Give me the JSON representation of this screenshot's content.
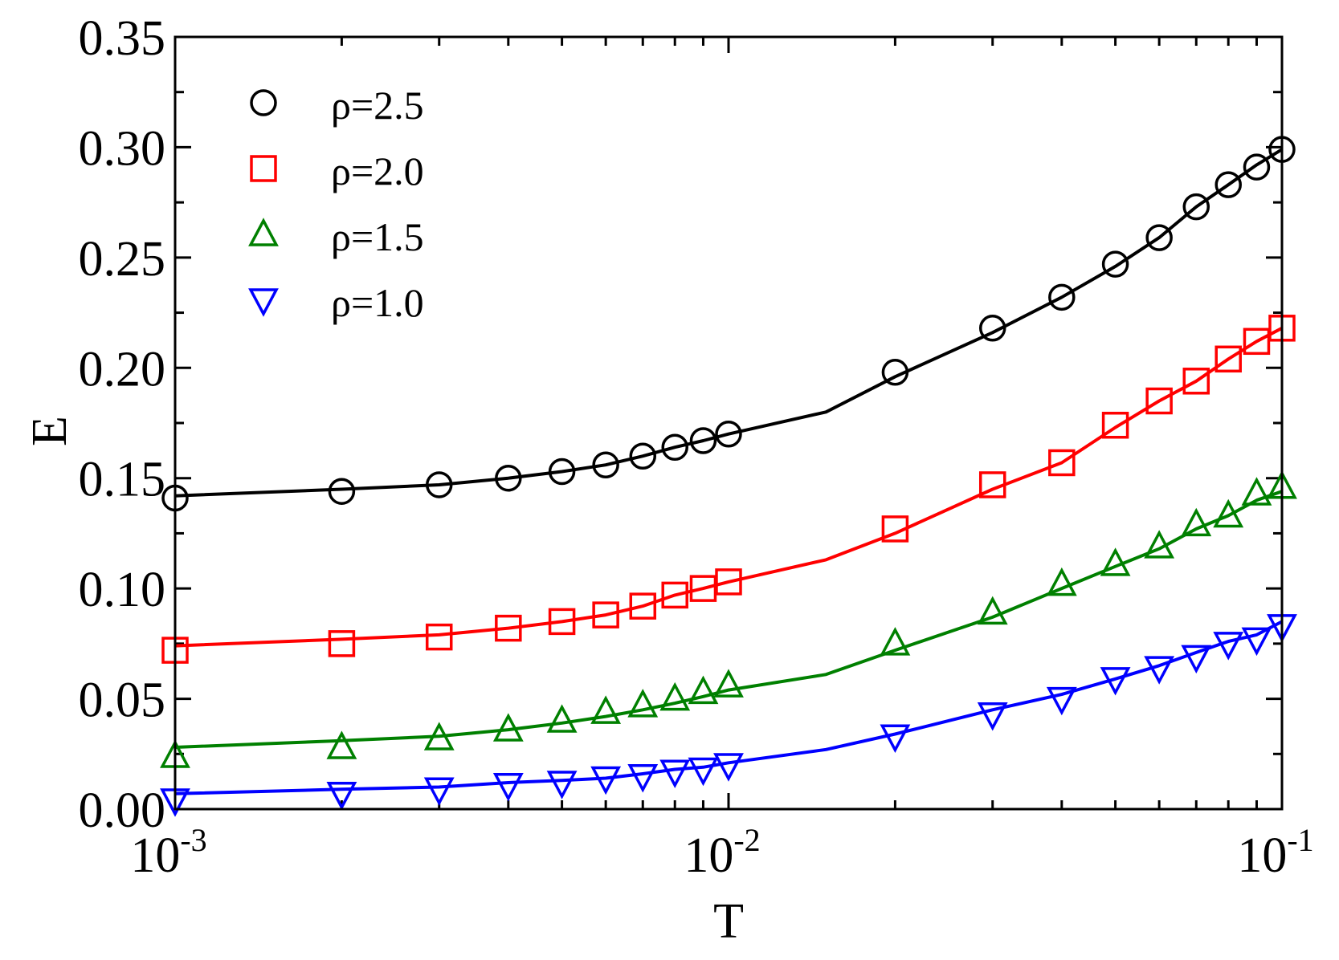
{
  "chart_data": {
    "type": "line",
    "xscale": "log",
    "xlabel": "T",
    "ylabel": "E",
    "xlim": [
      0.001,
      0.1
    ],
    "ylim": [
      0.0,
      0.35
    ],
    "yticks": [
      "0.00",
      "0.05",
      "0.10",
      "0.15",
      "0.20",
      "0.25",
      "0.30",
      "0.35"
    ],
    "xticks": [
      {
        "value": 0.001,
        "base": "10",
        "exp": "-3"
      },
      {
        "value": 0.01,
        "base": "10",
        "exp": "-2"
      },
      {
        "value": 0.1,
        "base": "10",
        "exp": "-1"
      }
    ],
    "legend_position": "top-left",
    "series": [
      {
        "name": "ρ=2.5",
        "color": "#000000",
        "marker": "circle",
        "x": [
          0.001,
          0.002,
          0.003,
          0.004,
          0.005,
          0.006,
          0.007,
          0.008,
          0.009,
          0.01,
          0.02,
          0.03,
          0.04,
          0.05,
          0.06,
          0.07,
          0.08,
          0.09,
          0.1
        ],
        "y": [
          0.141,
          0.144,
          0.147,
          0.15,
          0.153,
          0.156,
          0.16,
          0.164,
          0.167,
          0.17,
          0.198,
          0.218,
          0.232,
          0.247,
          0.259,
          0.273,
          0.283,
          0.291,
          0.299
        ],
        "line_x": [
          0.001,
          0.002,
          0.003,
          0.004,
          0.005,
          0.006,
          0.007,
          0.008,
          0.009,
          0.01,
          0.015,
          0.02,
          0.03,
          0.04,
          0.05,
          0.06,
          0.07,
          0.08,
          0.09,
          0.1
        ],
        "line_y": [
          0.142,
          0.145,
          0.147,
          0.15,
          0.153,
          0.156,
          0.16,
          0.164,
          0.167,
          0.17,
          0.18,
          0.196,
          0.216,
          0.232,
          0.246,
          0.259,
          0.273,
          0.283,
          0.292,
          0.299
        ]
      },
      {
        "name": "ρ=2.0",
        "color": "#ff0000",
        "marker": "square",
        "x": [
          0.001,
          0.002,
          0.003,
          0.004,
          0.005,
          0.006,
          0.007,
          0.008,
          0.009,
          0.01,
          0.02,
          0.03,
          0.04,
          0.05,
          0.06,
          0.07,
          0.08,
          0.09,
          0.1
        ],
        "y": [
          0.072,
          0.075,
          0.078,
          0.082,
          0.085,
          0.088,
          0.092,
          0.097,
          0.1,
          0.103,
          0.127,
          0.147,
          0.157,
          0.174,
          0.185,
          0.194,
          0.204,
          0.212,
          0.218
        ],
        "line_x": [
          0.001,
          0.002,
          0.003,
          0.004,
          0.005,
          0.006,
          0.007,
          0.008,
          0.009,
          0.01,
          0.015,
          0.02,
          0.03,
          0.04,
          0.05,
          0.06,
          0.07,
          0.08,
          0.09,
          0.1
        ],
        "line_y": [
          0.074,
          0.077,
          0.079,
          0.082,
          0.085,
          0.088,
          0.092,
          0.097,
          0.1,
          0.103,
          0.113,
          0.125,
          0.145,
          0.157,
          0.173,
          0.185,
          0.194,
          0.204,
          0.212,
          0.218
        ]
      },
      {
        "name": "ρ=1.5",
        "color": "#008000",
        "marker": "triangle-up",
        "x": [
          0.001,
          0.002,
          0.003,
          0.004,
          0.005,
          0.006,
          0.007,
          0.008,
          0.009,
          0.01,
          0.02,
          0.03,
          0.04,
          0.05,
          0.06,
          0.07,
          0.08,
          0.09,
          0.1
        ],
        "y": [
          0.024,
          0.028,
          0.032,
          0.036,
          0.04,
          0.044,
          0.047,
          0.05,
          0.053,
          0.056,
          0.075,
          0.089,
          0.102,
          0.111,
          0.119,
          0.129,
          0.133,
          0.143,
          0.146
        ],
        "line_x": [
          0.001,
          0.002,
          0.003,
          0.004,
          0.005,
          0.006,
          0.007,
          0.008,
          0.009,
          0.01,
          0.015,
          0.02,
          0.03,
          0.04,
          0.05,
          0.06,
          0.07,
          0.08,
          0.09,
          0.1
        ],
        "line_y": [
          0.028,
          0.031,
          0.033,
          0.036,
          0.039,
          0.042,
          0.045,
          0.048,
          0.051,
          0.054,
          0.061,
          0.072,
          0.087,
          0.1,
          0.11,
          0.118,
          0.127,
          0.133,
          0.14,
          0.144
        ]
      },
      {
        "name": "ρ=1.0",
        "color": "#0000ff",
        "marker": "triangle-down",
        "x": [
          0.001,
          0.002,
          0.003,
          0.004,
          0.005,
          0.006,
          0.007,
          0.008,
          0.009,
          0.01,
          0.02,
          0.03,
          0.04,
          0.05,
          0.06,
          0.07,
          0.08,
          0.09,
          0.1
        ],
        "y": [
          0.004,
          0.007,
          0.009,
          0.011,
          0.012,
          0.014,
          0.015,
          0.017,
          0.018,
          0.02,
          0.033,
          0.043,
          0.05,
          0.059,
          0.064,
          0.069,
          0.075,
          0.077,
          0.083
        ],
        "line_x": [
          0.001,
          0.002,
          0.003,
          0.004,
          0.005,
          0.006,
          0.007,
          0.008,
          0.009,
          0.01,
          0.015,
          0.02,
          0.03,
          0.04,
          0.05,
          0.06,
          0.07,
          0.08,
          0.09,
          0.1
        ],
        "line_y": [
          0.007,
          0.009,
          0.01,
          0.012,
          0.013,
          0.014,
          0.016,
          0.018,
          0.019,
          0.021,
          0.027,
          0.034,
          0.045,
          0.052,
          0.059,
          0.065,
          0.071,
          0.076,
          0.079,
          0.085
        ]
      }
    ]
  }
}
